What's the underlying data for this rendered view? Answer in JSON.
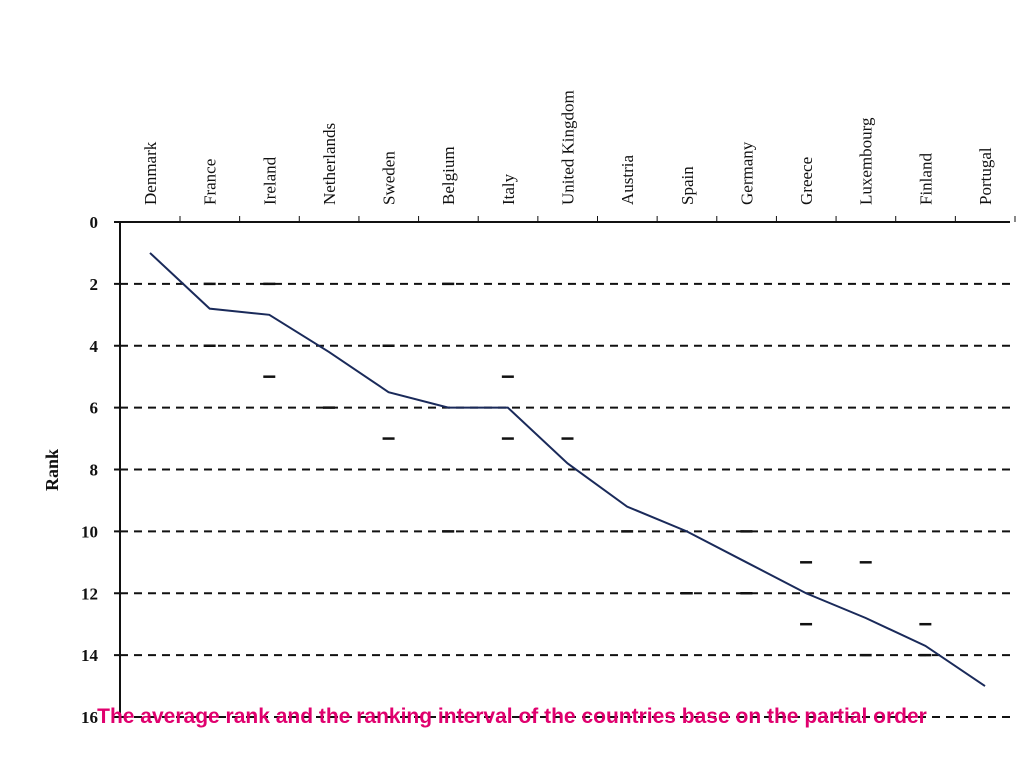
{
  "chart_data": {
    "type": "line",
    "y_label": "Rank",
    "categories": [
      "Denmark",
      "France",
      "Ireland",
      "Netherlands",
      "Sweden",
      "Belgium",
      "Italy",
      "United Kingdom",
      "Austria",
      "Spain",
      "Germany",
      "Greece",
      "Luxembourg",
      "Finland",
      "Portugal"
    ],
    "values": [
      1,
      2.8,
      3,
      4.2,
      5.5,
      6,
      6,
      7.8,
      9.2,
      10,
      11,
      12,
      12.8,
      13.7,
      15
    ],
    "interval_low": [
      null,
      2,
      2,
      null,
      4,
      2,
      5,
      7,
      null,
      null,
      10,
      11,
      11,
      13,
      null
    ],
    "interval_high": [
      null,
      4,
      5,
      6,
      7,
      10,
      7,
      null,
      10,
      12,
      12,
      13,
      14,
      14,
      null
    ],
    "color": "#1a2a5a",
    "ylim": [
      0,
      16
    ],
    "yticks": [
      0,
      2,
      4,
      6,
      8,
      10,
      12,
      14,
      16
    ],
    "y_inverted": true,
    "grid": true,
    "caption": "The average rank and the ranking interval of the countries base on the partial order"
  }
}
